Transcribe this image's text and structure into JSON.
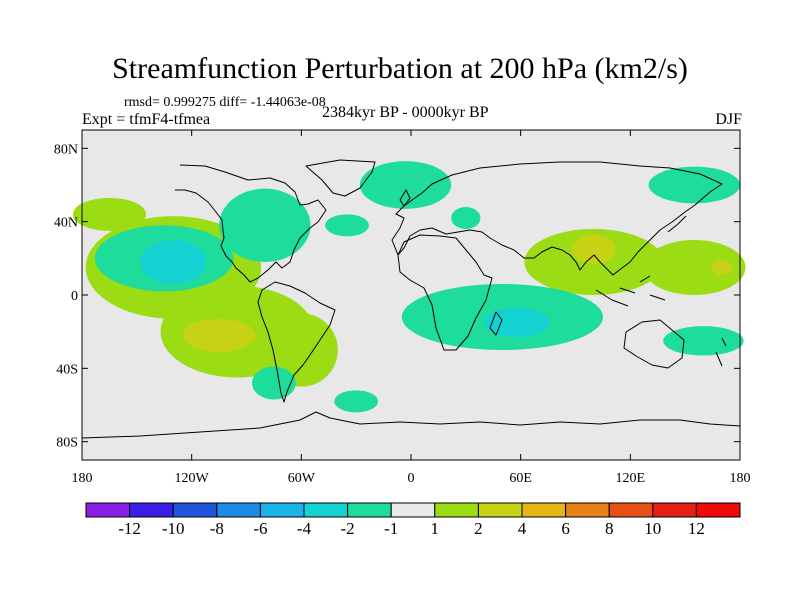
{
  "chart_data": {
    "type": "contour-map",
    "title": "Streamfunction Perturbation at 200 hPa (km2/s)",
    "stats_line": "rmsd= 0.999275 diff= -1.44063e-08",
    "experiment": "Expt = tfmF4-tfmea",
    "period": "2384kyr BP - 0000kyr BP",
    "season": "DJF",
    "x_axis": {
      "range": [
        -180,
        180
      ],
      "tick_values": [
        -180,
        -120,
        -60,
        0,
        60,
        120,
        180
      ],
      "tick_labels": [
        "180",
        "120W",
        "60W",
        "0",
        "60E",
        "120E",
        "180"
      ]
    },
    "y_axis": {
      "range": [
        -90,
        90
      ],
      "tick_values": [
        80,
        40,
        0,
        -40,
        -80
      ],
      "tick_labels": [
        "80N",
        "40N",
        "0",
        "40S",
        "80S"
      ]
    },
    "colorbar": {
      "labels": [
        "-12",
        "-10",
        "-8",
        "-6",
        "-4",
        "-2",
        "-1",
        "1",
        "2",
        "4",
        "6",
        "8",
        "10",
        "12"
      ],
      "colors": [
        "#8a1ee6",
        "#3a1ee6",
        "#1e55dc",
        "#1e8ce6",
        "#19b4e6",
        "#14d2d2",
        "#1edc9b",
        "#e8e8e8",
        "#9bdc14",
        "#c8d214",
        "#e6b414",
        "#e68214",
        "#e65014",
        "#e61e14",
        "#f00a0a"
      ]
    },
    "regions": [
      {
        "level": "1 to 2",
        "lon": -165,
        "lat": 44,
        "rlon": 20,
        "rlat": 9
      },
      {
        "level": "1 to 2",
        "lon": -130,
        "lat": 15,
        "rlon": 48,
        "rlat": 28
      },
      {
        "level": "1 to 2",
        "lon": -95,
        "lat": -20,
        "rlon": 42,
        "rlat": 25
      },
      {
        "level": "1 to 2",
        "lon": -60,
        "lat": -30,
        "rlon": 20,
        "rlat": 20
      },
      {
        "level": "1 to 2",
        "lon": 100,
        "lat": 18,
        "rlon": 38,
        "rlat": 18
      },
      {
        "level": "1 to 2",
        "lon": 155,
        "lat": 15,
        "rlon": 28,
        "rlat": 15
      },
      {
        "level": "2 to 4",
        "lon": -105,
        "lat": -22,
        "rlon": 20,
        "rlat": 9
      },
      {
        "level": "2 to 4",
        "lon": 100,
        "lat": 25,
        "rlon": 12,
        "rlat": 8
      },
      {
        "level": "2 to 4",
        "lon": 170,
        "lat": 15,
        "rlon": 6,
        "rlat": 4
      },
      {
        "level": "-1 to -2",
        "lon": -135,
        "lat": 20,
        "rlon": 38,
        "rlat": 18
      },
      {
        "level": "-1 to -2",
        "lon": -80,
        "lat": 38,
        "rlon": 25,
        "rlat": 20
      },
      {
        "level": "-1 to -2",
        "lon": -35,
        "lat": 38,
        "rlon": 12,
        "rlat": 6
      },
      {
        "level": "-1 to -2",
        "lon": -3,
        "lat": 60,
        "rlon": 25,
        "rlat": 13
      },
      {
        "level": "-1 to -2",
        "lon": 30,
        "lat": 42,
        "rlon": 8,
        "rlat": 6
      },
      {
        "level": "-1 to -2",
        "lon": 50,
        "lat": -12,
        "rlon": 55,
        "rlat": 18
      },
      {
        "level": "-1 to -2",
        "lon": 155,
        "lat": 60,
        "rlon": 25,
        "rlat": 10
      },
      {
        "level": "-1 to -2",
        "lon": 160,
        "lat": -25,
        "rlon": 22,
        "rlat": 8
      },
      {
        "level": "-1 to -2",
        "lon": -30,
        "lat": -58,
        "rlon": 12,
        "rlat": 6
      },
      {
        "level": "-1 to -2",
        "lon": -75,
        "lat": -48,
        "rlon": 12,
        "rlat": 9
      },
      {
        "level": "-2 to -4",
        "lon": -130,
        "lat": 18,
        "rlon": 18,
        "rlat": 12
      },
      {
        "level": "-2 to -4",
        "lon": 58,
        "lat": -15,
        "rlon": 18,
        "rlat": 8
      }
    ]
  }
}
